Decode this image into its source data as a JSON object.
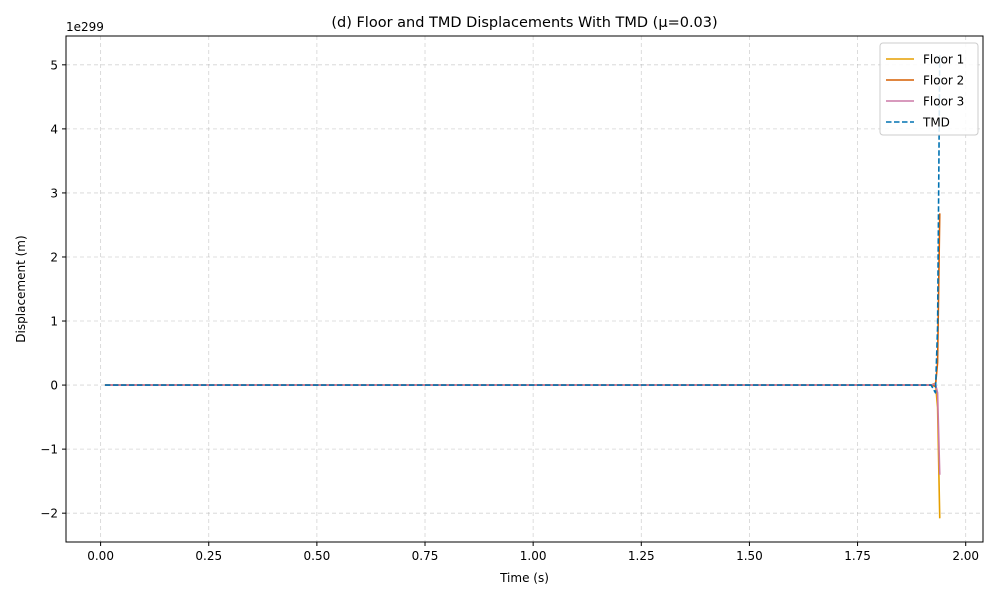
{
  "chart_data": {
    "type": "line",
    "title": "(d) Floor and TMD Displacements With TMD (μ=0.03)",
    "xlabel": "Time (s)",
    "ylabel": "Displacement (m)",
    "y_offset_text": "1e299",
    "xlim": [
      -0.08,
      2.04
    ],
    "ylim": [
      -2.45,
      5.45
    ],
    "xticks": [
      0.0,
      0.25,
      0.5,
      0.75,
      1.0,
      1.25,
      1.5,
      1.75,
      2.0
    ],
    "xtick_labels": [
      "0.00",
      "0.25",
      "0.50",
      "0.75",
      "1.00",
      "1.25",
      "1.50",
      "1.75",
      "2.00"
    ],
    "yticks": [
      -2,
      -1,
      0,
      1,
      2,
      3,
      4,
      5
    ],
    "ytick_labels": [
      "−2",
      "−1",
      "0",
      "1",
      "2",
      "3",
      "4",
      "5"
    ],
    "grid": true,
    "legend_position": "top-right",
    "series": [
      {
        "name": "Floor 1",
        "color": "#e69f00",
        "dash": "solid",
        "x": [
          0.01,
          1.92,
          1.93,
          1.935,
          1.94
        ],
        "y": [
          0,
          0,
          0.03,
          -0.35,
          -2.08
        ]
      },
      {
        "name": "Floor 2",
        "color": "#d55e00",
        "dash": "solid",
        "x": [
          0.01,
          1.92,
          1.93,
          1.935,
          1.94
        ],
        "y": [
          0,
          0,
          -0.02,
          0.35,
          2.68
        ]
      },
      {
        "name": "Floor 3",
        "color": "#cc79a7",
        "dash": "solid",
        "x": [
          0.01,
          1.92,
          1.93,
          1.935,
          1.94
        ],
        "y": [
          0,
          0,
          0.02,
          -0.12,
          -1.4
        ]
      },
      {
        "name": "TMD",
        "color": "#0072b2",
        "dash": "dashed",
        "x": [
          0.01,
          1.92,
          1.93,
          1.935,
          1.94
        ],
        "y": [
          0,
          0,
          -0.12,
          0.9,
          5.15
        ]
      }
    ]
  }
}
